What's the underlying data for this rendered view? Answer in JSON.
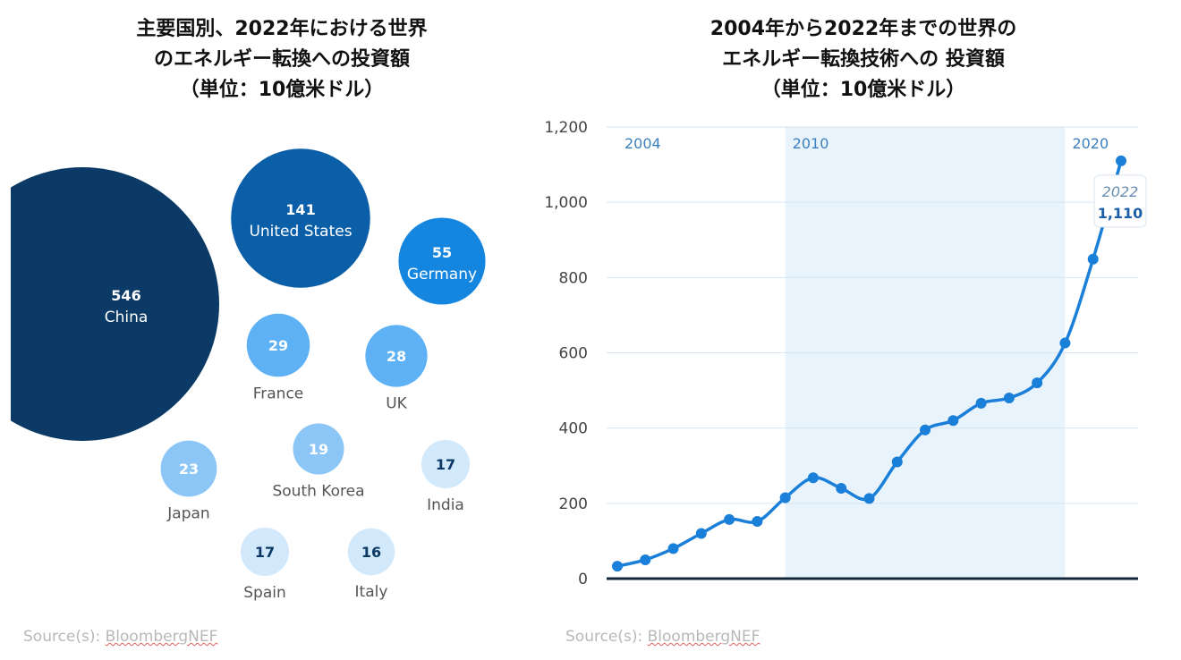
{
  "left_chart": {
    "title_lines": [
      "主要国別、2022年における世界",
      "のエネルギー転換への投資額",
      "（単位：10億米ドル）"
    ],
    "source_prefix": "Source(s): ",
    "source_name": "BloombergNEF"
  },
  "right_chart": {
    "title_lines": [
      "2004年から2022年までの世界の",
      "エネルギー転換技術への 投資額",
      "（単位：10億米ドル）"
    ],
    "source_prefix": "Source(s): ",
    "source_name": "BloombergNEF"
  },
  "chart_data": [
    {
      "type": "bubble",
      "title": "主要国別、2022年における世界のエネルギー転換への投資額（単位：10億米ドル）",
      "unit": "10億米ドル",
      "series": [
        {
          "name": "China",
          "value": 546,
          "value_label": "546",
          "color": "#0b3a66",
          "text_color": "#ffffff",
          "label_inside": true
        },
        {
          "name": "United States",
          "value": 141,
          "value_label": "141",
          "color": "#0a5fa8",
          "text_color": "#ffffff",
          "label_inside": true
        },
        {
          "name": "Germany",
          "value": 55,
          "value_label": "55",
          "color": "#1586e0",
          "text_color": "#ffffff",
          "label_inside": true
        },
        {
          "name": "France",
          "value": 29,
          "value_label": "29",
          "color": "#5db1f4",
          "text_color": "#ffffff",
          "label_inside": false
        },
        {
          "name": "UK",
          "value": 28,
          "value_label": "28",
          "color": "#5db1f4",
          "text_color": "#ffffff",
          "label_inside": false
        },
        {
          "name": "Japan",
          "value": 23,
          "value_label": "23",
          "color": "#8cc6f7",
          "text_color": "#ffffff",
          "label_inside": false
        },
        {
          "name": "South Korea",
          "value": 19,
          "value_label": "19",
          "color": "#8cc6f7",
          "text_color": "#ffffff",
          "label_inside": false
        },
        {
          "name": "India",
          "value": 17,
          "value_label": "17",
          "color": "#d2e8fb",
          "text_color": "#0b3a66",
          "label_inside": false
        },
        {
          "name": "Spain",
          "value": 17,
          "value_label": "17",
          "color": "#d2e8fb",
          "text_color": "#0b3a66",
          "label_inside": false
        },
        {
          "name": "Italy",
          "value": 16,
          "value_label": "16",
          "color": "#d2e8fb",
          "text_color": "#0b3a66",
          "label_inside": false
        }
      ]
    },
    {
      "type": "line",
      "title": "2004年から2022年までの世界のエネルギー転換技術への 投資額（単位：10億米ドル）",
      "xlabel": "",
      "ylabel": "",
      "x": [
        2004,
        2005,
        2006,
        2007,
        2008,
        2009,
        2010,
        2011,
        2012,
        2013,
        2014,
        2015,
        2016,
        2017,
        2018,
        2019,
        2020,
        2021,
        2022
      ],
      "values": [
        33,
        50,
        80,
        120,
        157,
        152,
        215,
        268,
        240,
        213,
        310,
        395,
        420,
        466,
        480,
        520,
        626,
        849,
        1110
      ],
      "ylim": [
        0,
        1200
      ],
      "yticks": [
        0,
        200,
        400,
        600,
        800,
        1000,
        1200
      ],
      "ytick_labels": [
        "0",
        "200",
        "400",
        "600",
        "800",
        "1,000",
        "1,200"
      ],
      "x_markers": [
        "2004",
        "2010",
        "2020"
      ],
      "shaded_range": [
        2010,
        2020
      ],
      "callout": {
        "year": "2022",
        "value": "1,110"
      },
      "grid": true,
      "line_color": "#1a7fd8",
      "shade_color": "#e8f3fc"
    }
  ]
}
